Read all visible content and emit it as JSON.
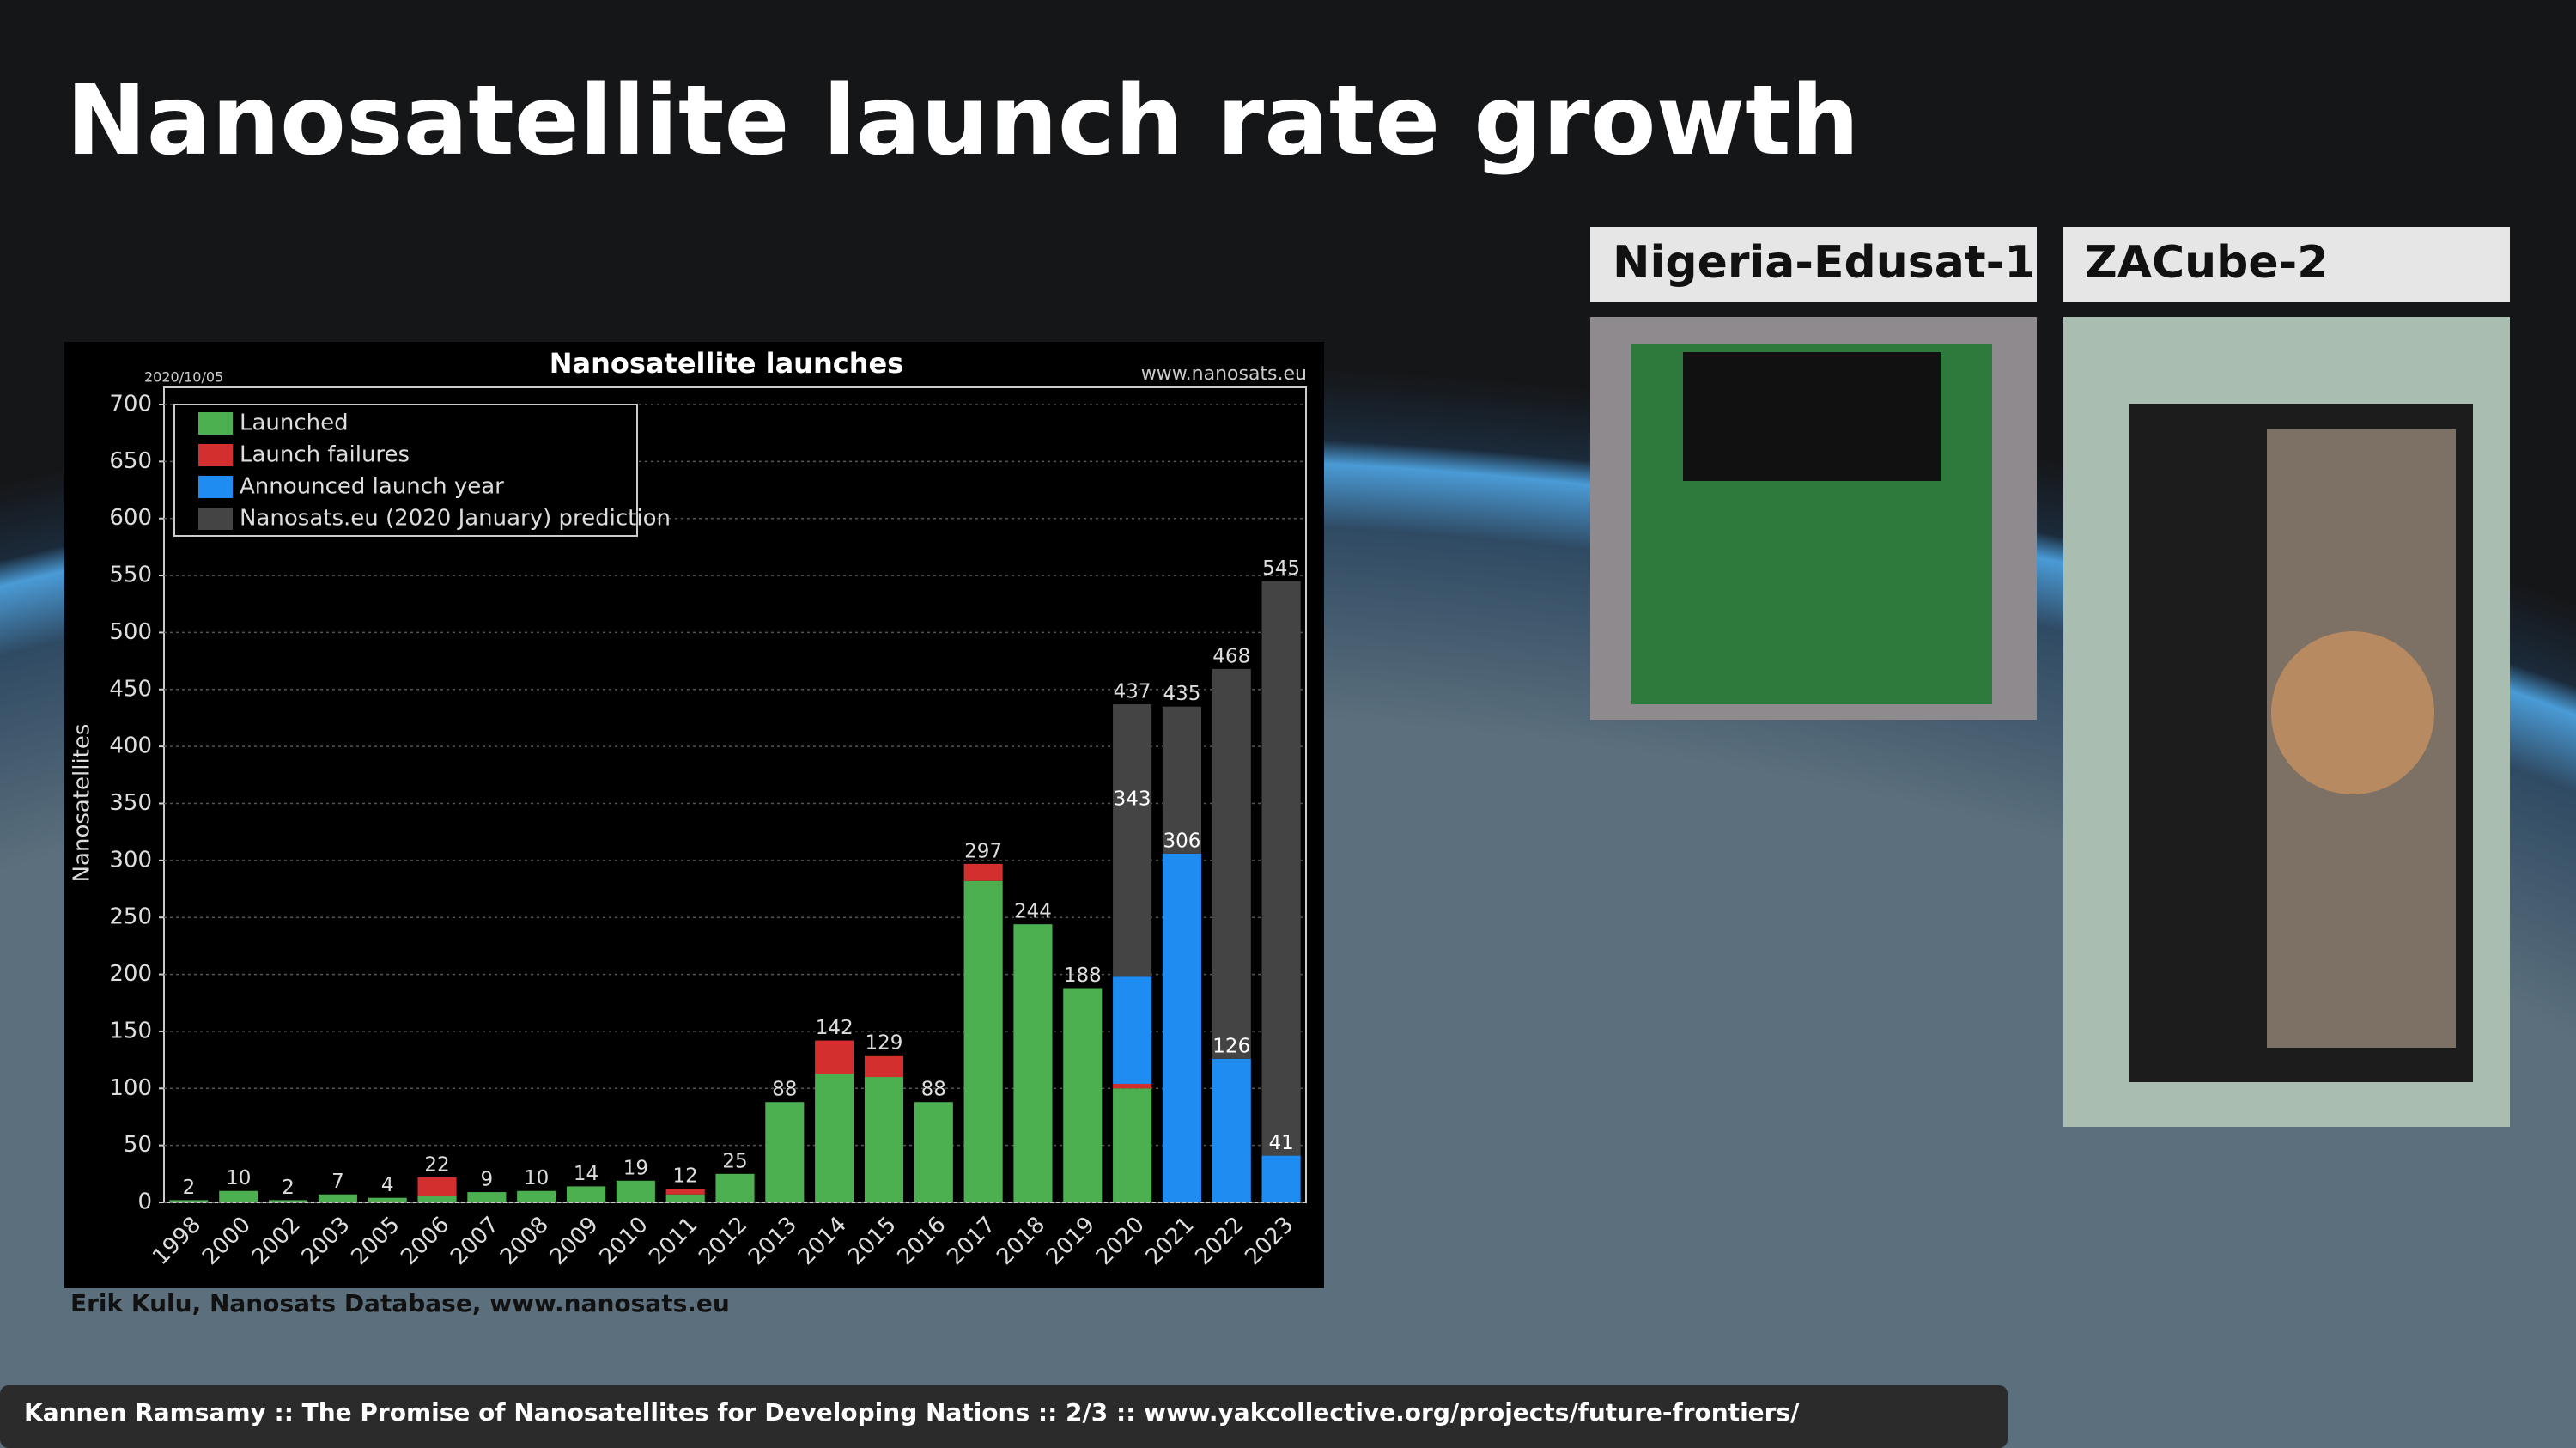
{
  "slide": {
    "title": "Nanosatellite launch rate growth",
    "footer": "Kannen Ramsamy :: The Promise of Nanosatellites for Developing Nations :: 2/3 :: www.yakcollective.org/projects/future-frontiers/"
  },
  "photos": [
    {
      "caption": "Nigeria-Edusat-1"
    },
    {
      "caption": "ZACube-2"
    }
  ],
  "chart_source": "Erik Kulu, Nanosats Database, www.nanosats.eu",
  "chart_data": {
    "type": "stacked_bar",
    "title": "Nanosatellite launches",
    "date": "2020/10/05",
    "website": "www.nanosats.eu",
    "ylabel": "Nanosatellites",
    "categories": [
      "1998",
      "2000",
      "2002",
      "2003",
      "2005",
      "2006",
      "2007",
      "2008",
      "2009",
      "2010",
      "2011",
      "2012",
      "2013",
      "2014",
      "2015",
      "2016",
      "2017",
      "2018",
      "2019",
      "2020",
      "2021",
      "2022",
      "2023"
    ],
    "series": [
      {
        "name": "Launched",
        "color": "#4caf50",
        "values": [
          2,
          10,
          2,
          7,
          4,
          6,
          9,
          10,
          14,
          19,
          7,
          25,
          88,
          113,
          110,
          88,
          282,
          244,
          188,
          100,
          null,
          null,
          null
        ]
      },
      {
        "name": "Launch failures",
        "color": "#d32f2f",
        "values": [
          null,
          null,
          null,
          null,
          null,
          16,
          null,
          null,
          null,
          null,
          5,
          null,
          null,
          29,
          19,
          null,
          15,
          null,
          null,
          4,
          null,
          null,
          null
        ]
      },
      {
        "name": "Announced launch year",
        "color": "#1e8cf0",
        "values": [
          null,
          null,
          null,
          null,
          null,
          null,
          null,
          null,
          null,
          null,
          null,
          null,
          null,
          null,
          null,
          null,
          null,
          null,
          null,
          94,
          306,
          126,
          41
        ]
      },
      {
        "name": "Nanosats.eu (2020 January) prediction",
        "color": "#444444",
        "values": [
          null,
          null,
          null,
          null,
          null,
          null,
          null,
          null,
          null,
          null,
          null,
          null,
          null,
          null,
          null,
          null,
          null,
          null,
          null,
          239,
          129,
          342,
          504
        ]
      }
    ],
    "total_labels": [
      2,
      10,
      2,
      7,
      4,
      22,
      9,
      10,
      14,
      19,
      12,
      25,
      88,
      142,
      129,
      88,
      297,
      244,
      188,
      437,
      435,
      468,
      545
    ],
    "inner_labels": [
      null,
      null,
      null,
      null,
      null,
      null,
      null,
      null,
      null,
      null,
      null,
      null,
      null,
      null,
      null,
      null,
      null,
      null,
      null,
      343,
      306,
      126,
      41
    ],
    "ylim": [
      0,
      700
    ],
    "yticks": [
      0,
      50,
      100,
      150,
      200,
      250,
      300,
      350,
      400,
      450,
      500,
      550,
      600,
      650,
      700
    ],
    "grid": true,
    "legend": "upper left"
  }
}
